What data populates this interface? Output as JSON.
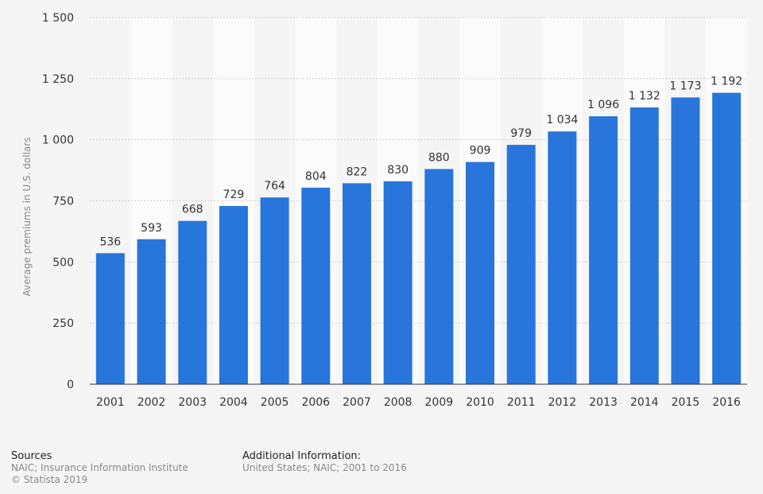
{
  "chart_data": {
    "type": "bar",
    "title": "",
    "xlabel": "",
    "ylabel": "Average premiums in U.S. dollars",
    "categories": [
      "2001",
      "2002",
      "2003",
      "2004",
      "2005",
      "2006",
      "2007",
      "2008",
      "2009",
      "2010",
      "2011",
      "2012",
      "2013",
      "2014",
      "2015",
      "2016"
    ],
    "values": [
      536,
      593,
      668,
      729,
      764,
      804,
      822,
      830,
      880,
      909,
      979,
      1034,
      1096,
      1132,
      1173,
      1192
    ],
    "value_labels": [
      "536",
      "593",
      "668",
      "729",
      "764",
      "804",
      "822",
      "830",
      "880",
      "909",
      "979",
      "1 034",
      "1 096",
      "1 132",
      "1 173",
      "1 192"
    ],
    "ylim": [
      0,
      1500
    ],
    "yticks": [
      0,
      250,
      500,
      750,
      1000,
      1250,
      1500
    ],
    "ytick_labels": [
      "0",
      "250",
      "500",
      "750",
      "1 000",
      "1 250",
      "1 500"
    ],
    "grid": true,
    "legend": "none",
    "bar_color": "#2875dc"
  },
  "footer": {
    "sources_title": "Sources",
    "sources_line1": "NAIC; Insurance Information Institute",
    "sources_line2": "© Statista 2019",
    "info_title": "Additional Information:",
    "info_line1": "United States; NAIC; 2001 to 2016"
  }
}
